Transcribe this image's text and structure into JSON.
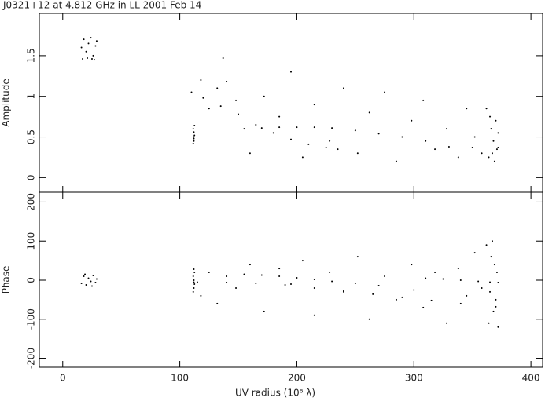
{
  "chart_data": [
    {
      "type": "scatter",
      "title": "J0321+12 at 4.812 GHz in LL  2001 Feb 14",
      "ylabel": "Amplitude",
      "color": "#000000",
      "xlim": [
        -20,
        410
      ],
      "xticks": [
        0,
        100,
        200,
        300,
        400
      ],
      "ylim": [
        -0.18,
        2.02
      ],
      "yticks": [
        0,
        0.5,
        1,
        1.5
      ],
      "x": [
        16,
        18,
        20,
        22,
        24,
        26,
        28,
        29,
        17,
        21,
        25,
        27,
        111.5,
        112,
        112.5,
        112,
        111.5,
        112.5,
        112,
        112,
        110,
        120,
        135,
        150,
        165,
        180,
        195,
        210,
        225,
        235,
        155,
        170,
        185,
        200,
        215,
        230,
        250,
        270,
        290,
        310,
        330,
        350,
        372,
        118,
        125,
        132,
        140,
        148,
        160,
        172,
        185,
        195,
        205,
        215,
        228,
        240,
        252,
        262,
        275,
        285,
        298,
        308,
        318,
        328,
        338,
        345,
        352,
        358,
        137,
        362,
        364,
        366,
        368,
        369,
        370,
        371,
        372,
        367,
        365
      ],
      "y": [
        1.6,
        1.7,
        1.55,
        1.65,
        1.72,
        1.5,
        1.62,
        1.68,
        1.46,
        1.47,
        1.46,
        1.45,
        0.42,
        0.48,
        0.52,
        0.56,
        0.6,
        0.64,
        0.5,
        0.45,
        1.05,
        0.98,
        0.88,
        0.78,
        0.65,
        0.55,
        0.47,
        0.41,
        0.37,
        0.35,
        0.6,
        0.61,
        0.62,
        0.62,
        0.62,
        0.61,
        0.58,
        0.54,
        0.5,
        0.45,
        0.38,
        0.37,
        0.37,
        1.2,
        0.85,
        1.1,
        1.18,
        0.95,
        0.3,
        1.0,
        0.75,
        1.3,
        0.25,
        0.9,
        0.45,
        1.1,
        0.3,
        0.8,
        1.05,
        0.2,
        0.7,
        0.95,
        0.35,
        0.6,
        0.25,
        0.85,
        0.5,
        0.3,
        1.47,
        0.85,
        0.25,
        0.6,
        0.45,
        0.2,
        0.7,
        0.35,
        0.55,
        0.3,
        0.75
      ]
    },
    {
      "type": "scatter",
      "ylabel": "Phase",
      "xlabel": "UV radius  (10⁶ λ)",
      "color": "#000000",
      "xlim": [
        -20,
        410
      ],
      "xticks": [
        0,
        100,
        200,
        300,
        400
      ],
      "ylim": [
        -223,
        225
      ],
      "yticks": [
        -200,
        -100,
        0,
        100,
        200
      ],
      "x": [
        16,
        18,
        20,
        22,
        24,
        26,
        28,
        29,
        19,
        25,
        111.5,
        112,
        112.5,
        112,
        111.5,
        112.5,
        112,
        112,
        115,
        140,
        165,
        190,
        215,
        240,
        265,
        290,
        315,
        340,
        370,
        155,
        170,
        185,
        200,
        215,
        230,
        250,
        270,
        300,
        310,
        325,
        340,
        355,
        365,
        372,
        118,
        125,
        132,
        140,
        148,
        160,
        172,
        185,
        195,
        205,
        215,
        228,
        240,
        252,
        262,
        275,
        285,
        298,
        308,
        318,
        328,
        338,
        345,
        352,
        358,
        362,
        364,
        366,
        368,
        369,
        370,
        371,
        372,
        367,
        365
      ],
      "y": [
        -8,
        10,
        -12,
        5,
        -3,
        12,
        -6,
        3,
        15,
        -15,
        -30,
        -20,
        -10,
        0,
        10,
        20,
        28,
        -5,
        -5,
        -6,
        -8,
        -12,
        -20,
        -28,
        -36,
        -44,
        -52,
        -60,
        -68,
        15,
        13,
        10,
        6,
        2,
        -3,
        -8,
        -14,
        -25,
        5,
        3,
        0,
        -3,
        -5,
        -6,
        -40,
        20,
        -60,
        10,
        -20,
        40,
        -80,
        30,
        -10,
        50,
        -90,
        20,
        -30,
        60,
        -100,
        10,
        -50,
        40,
        -70,
        20,
        -110,
        30,
        -40,
        70,
        -20,
        90,
        -110,
        60,
        -80,
        40,
        -50,
        20,
        -120,
        100,
        -30
      ]
    }
  ]
}
